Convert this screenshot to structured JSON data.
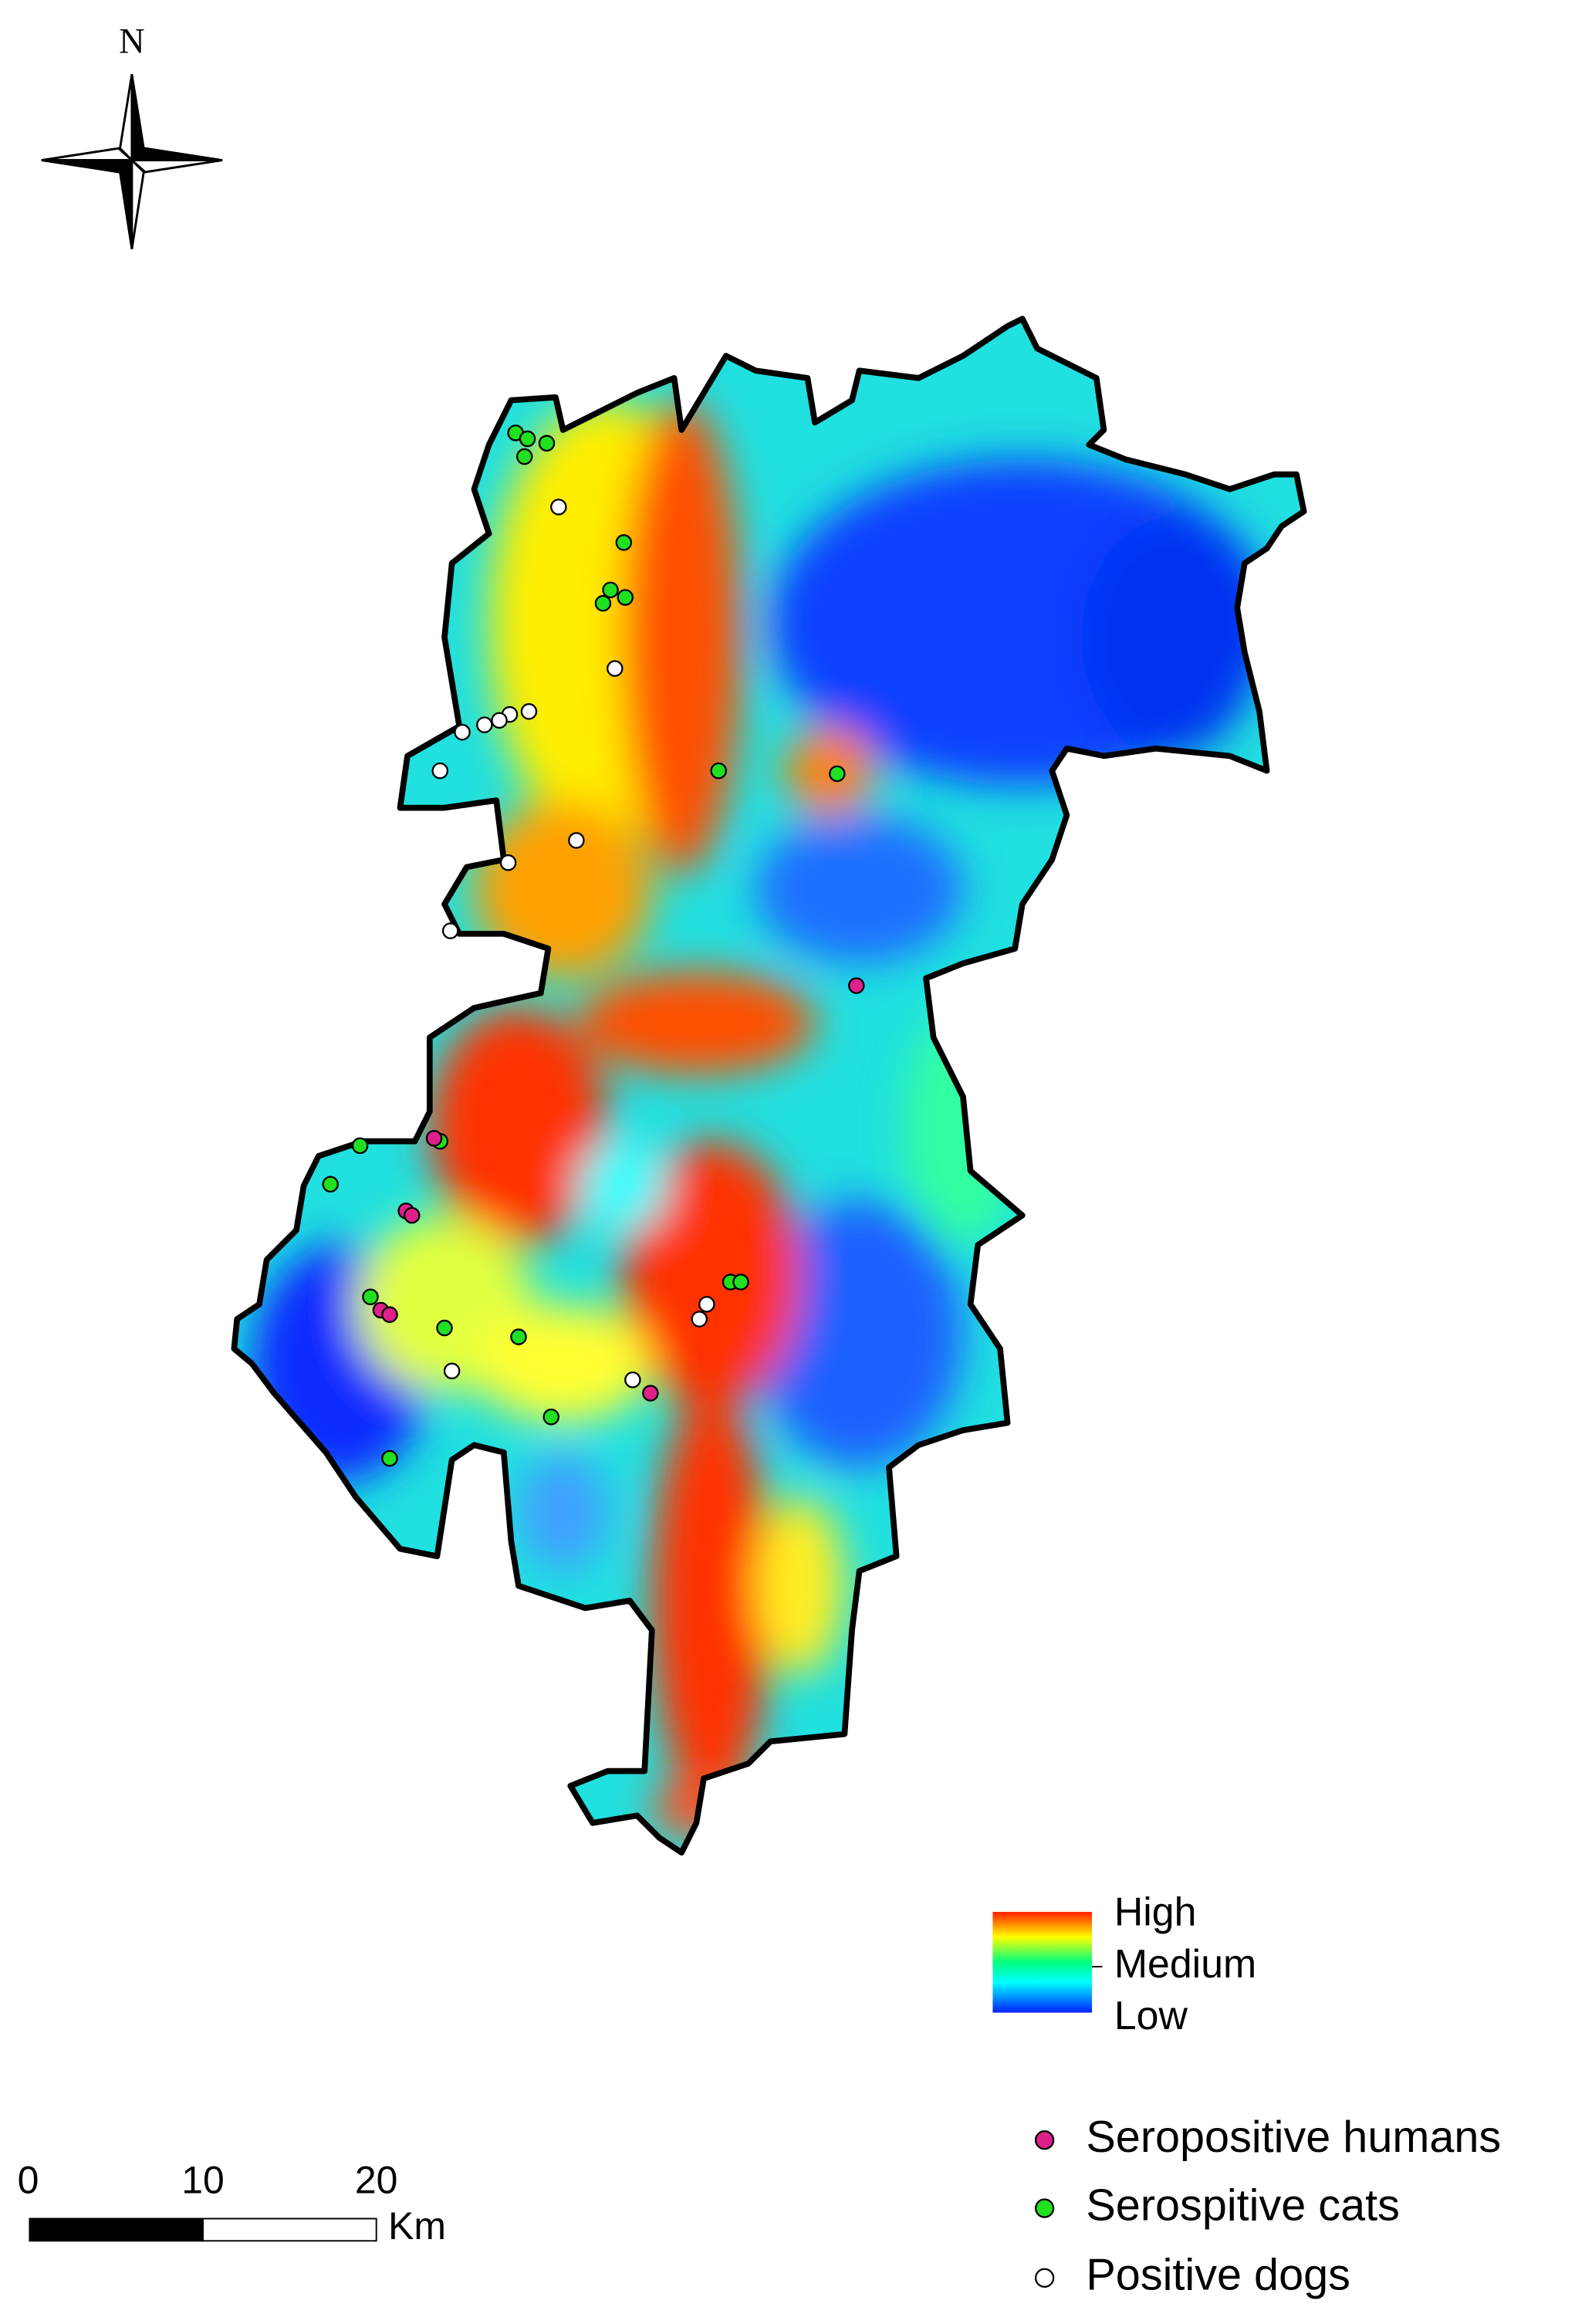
{
  "north": "N",
  "legend": {
    "gradient": {
      "high": "High",
      "medium": "Medium",
      "low": "Low"
    },
    "points": [
      "Seropositive humans",
      "Serospitive cats",
      "Positive dogs"
    ]
  },
  "scale_bar": {
    "ticks": [
      "0",
      "10",
      "20"
    ],
    "unit": "Km"
  }
}
